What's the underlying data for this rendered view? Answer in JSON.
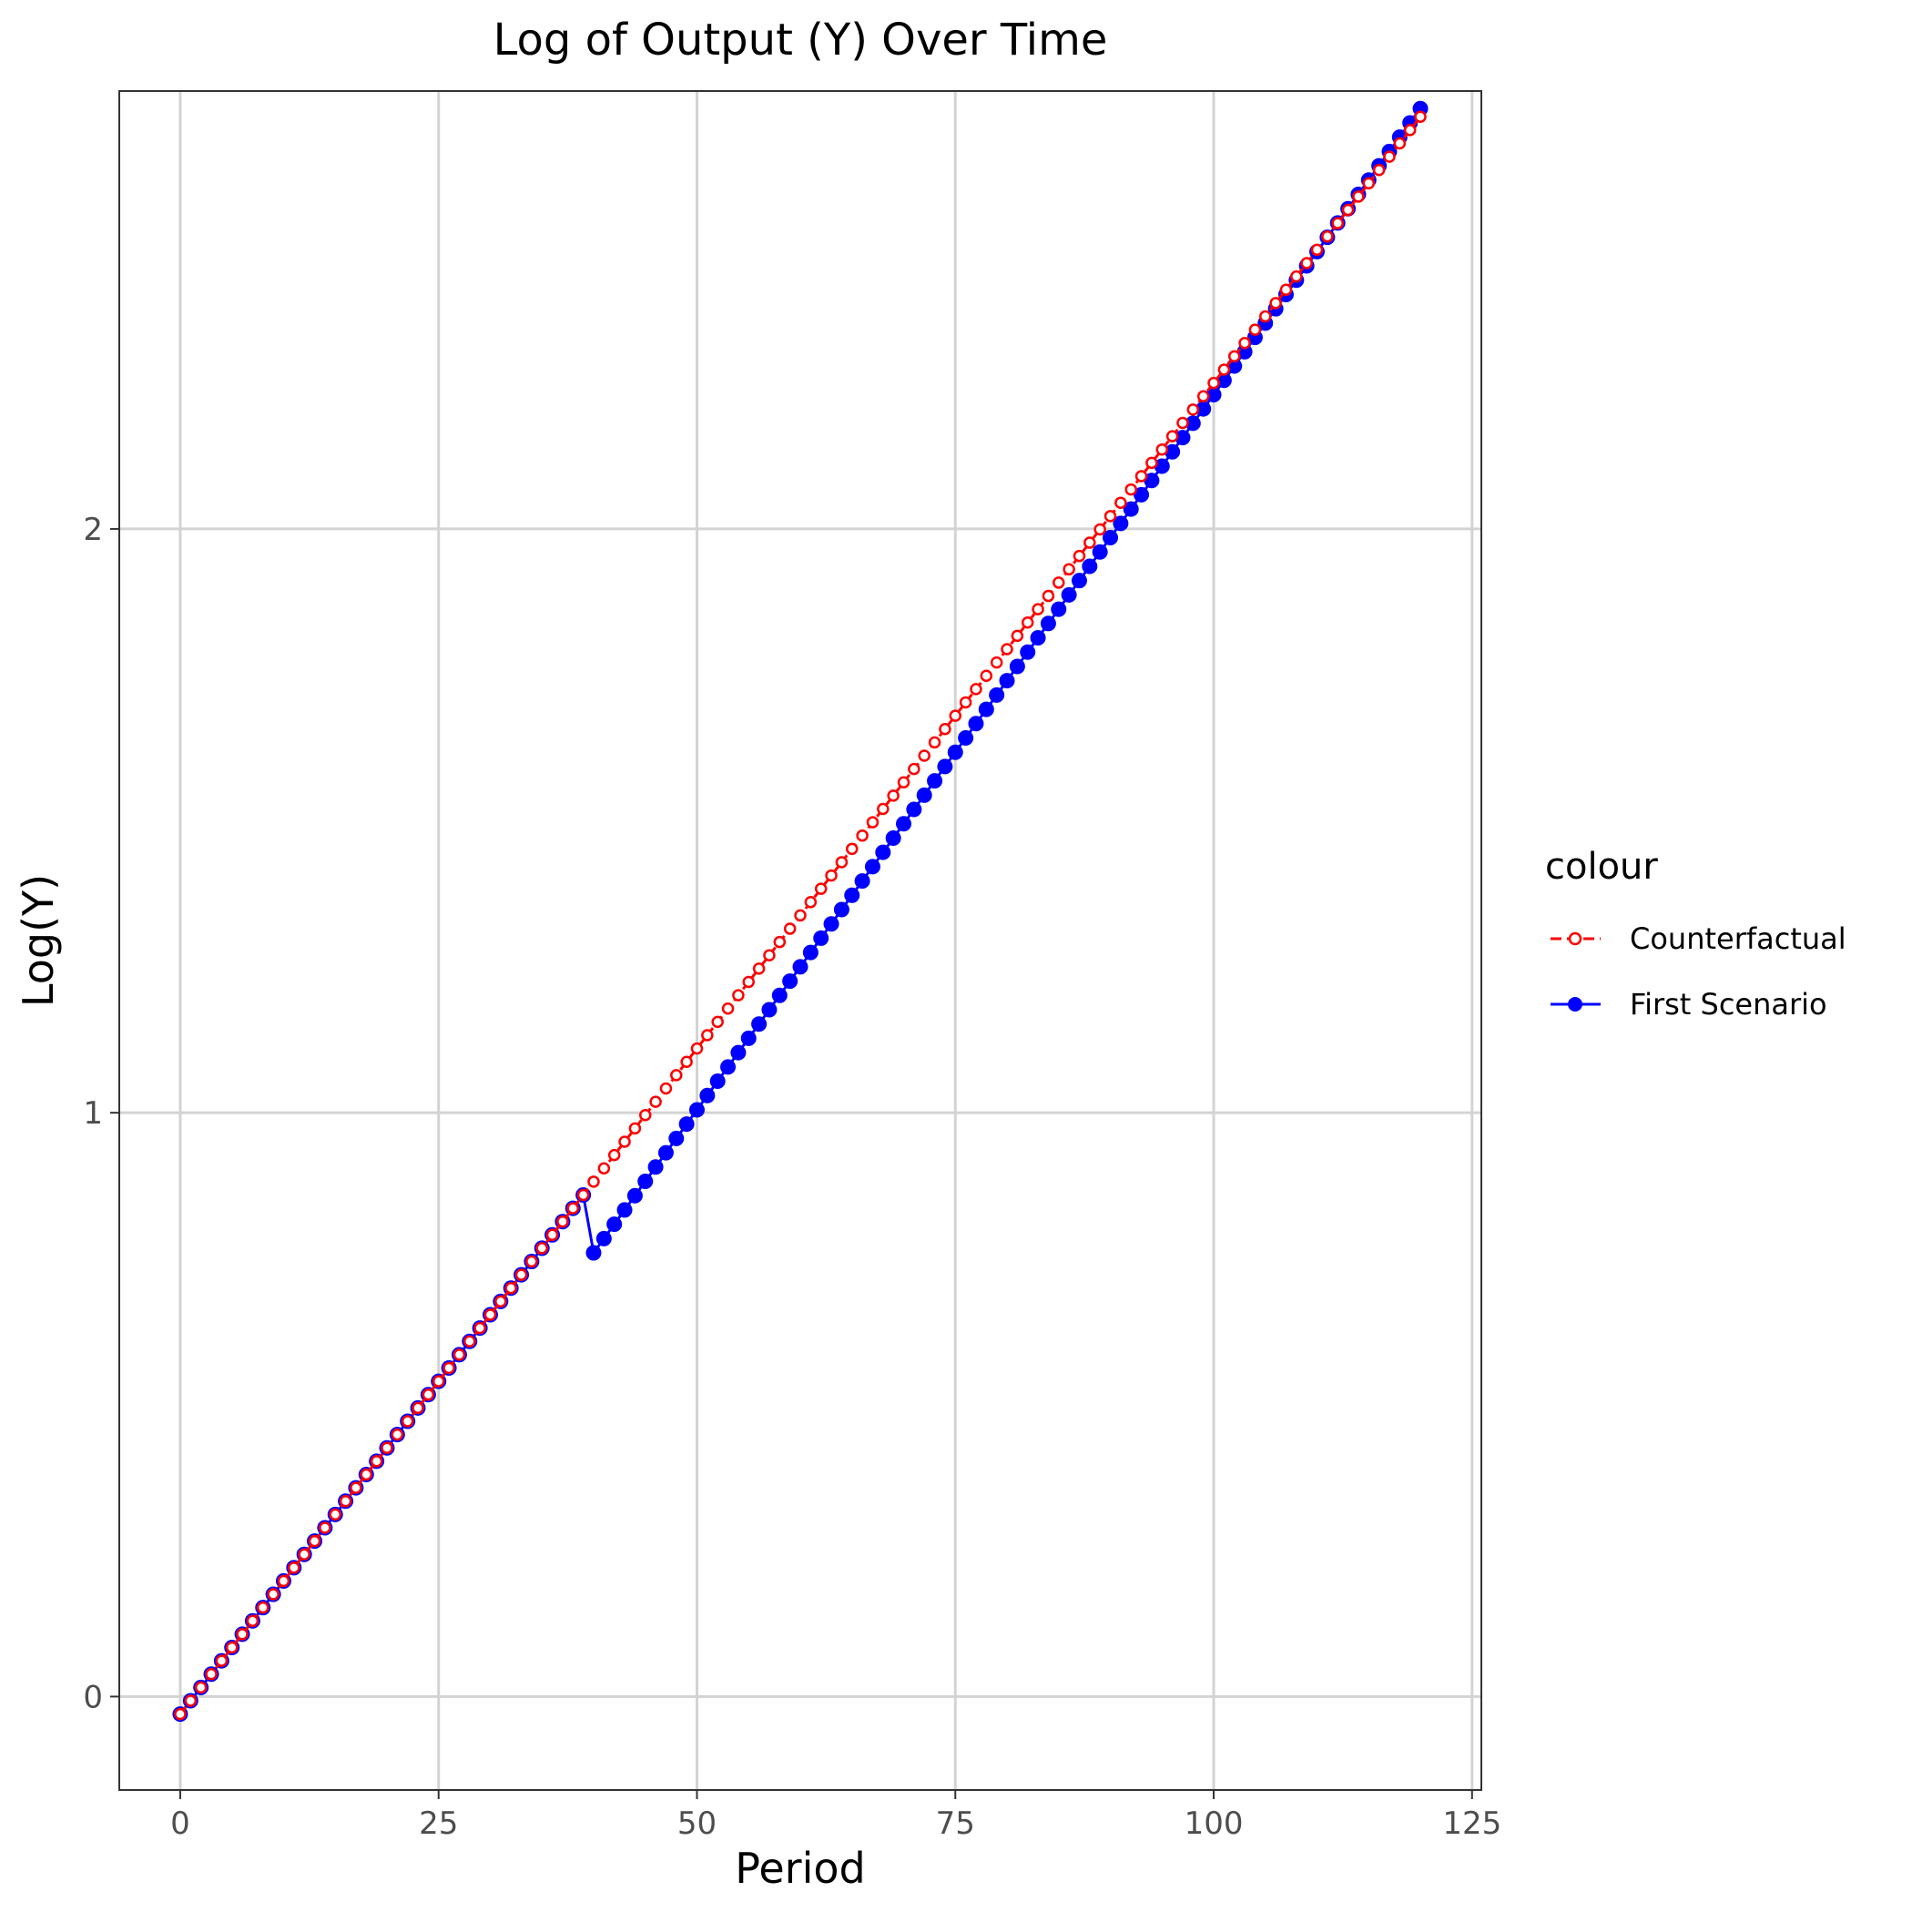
{
  "chart_data": {
    "type": "line",
    "title": "Log of Output (Y) Over Time",
    "xlabel": "Period",
    "ylabel": "Log(Y)",
    "xlim": [
      -5.9,
      125.9
    ],
    "ylim": [
      -0.16,
      2.75
    ],
    "x_ticks": [
      0,
      25,
      50,
      75,
      100,
      125
    ],
    "x_tick_labels": [
      "0",
      "25",
      "50",
      "75",
      "100",
      "125"
    ],
    "y_ticks": [
      0,
      1,
      2
    ],
    "y_tick_labels": [
      "0",
      "1",
      "2"
    ],
    "grid": true,
    "legend": {
      "title": "colour",
      "placement": "right"
    },
    "series": [
      {
        "name": "Counterfactual",
        "color": "#ff0000",
        "marker": "open-circle",
        "line_style": "dashed",
        "x_start": 0,
        "x_end": 120,
        "y_start": -0.03,
        "slope": 0.0228
      },
      {
        "name": "First Scenario",
        "color": "#0000ff",
        "marker": "filled-circle",
        "line_style": "solid",
        "x_start": 0,
        "x_end": 120,
        "segments": [
          {
            "x_from": 0,
            "x_to": 39,
            "y_start": -0.03,
            "slope": 0.0228
          },
          {
            "x_from": 40,
            "x_to": 120,
            "y_start": 0.76,
            "slope": 0.0245
          }
        ]
      }
    ]
  }
}
